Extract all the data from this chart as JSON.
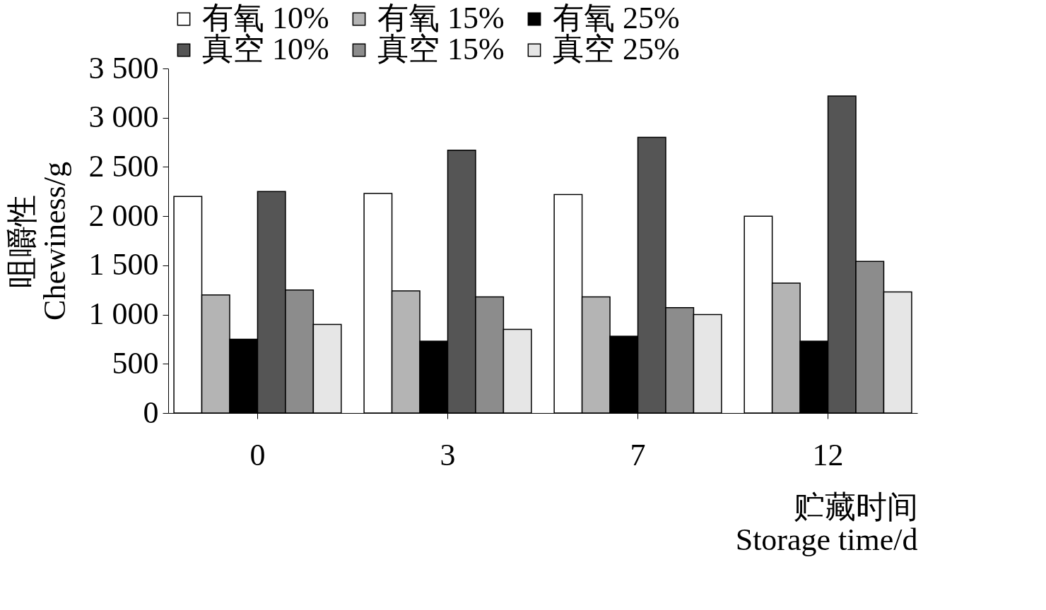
{
  "chart_data": {
    "type": "bar",
    "xlabel": "贮藏时间\nStorage time/d",
    "ylabel": "咀嚼性\nChewiness/g",
    "categories": [
      "0",
      "3",
      "7",
      "12"
    ],
    "series": [
      {
        "name": "有氧 10%",
        "color": "#ffffff",
        "values": [
          2200,
          2230,
          2220,
          2000
        ]
      },
      {
        "name": "有氧 15%",
        "color": "#b4b4b4",
        "values": [
          1200,
          1240,
          1180,
          1320
        ]
      },
      {
        "name": "有氧 25%",
        "color": "#000000",
        "values": [
          750,
          730,
          780,
          730
        ]
      },
      {
        "name": "真空 10%",
        "color": "#555555",
        "values": [
          2250,
          2670,
          2800,
          3220
        ]
      },
      {
        "name": "真空 15%",
        "color": "#8c8c8c",
        "values": [
          1250,
          1180,
          1070,
          1540
        ]
      },
      {
        "name": "真空 25%",
        "color": "#e6e6e6",
        "values": [
          900,
          850,
          1000,
          1230
        ]
      }
    ],
    "ylim": [
      0,
      3500
    ],
    "yticks": [
      0,
      500,
      {
        "value": 1000,
        "label": "1 000"
      },
      {
        "value": 1500,
        "label": "1 500"
      },
      {
        "value": 2000,
        "label": "2 000"
      },
      {
        "value": 2500,
        "label": "2 500"
      },
      {
        "value": 3000,
        "label": "3 000"
      },
      {
        "value": 3500,
        "label": "3 500"
      }
    ],
    "grid": false,
    "legend": "top"
  }
}
